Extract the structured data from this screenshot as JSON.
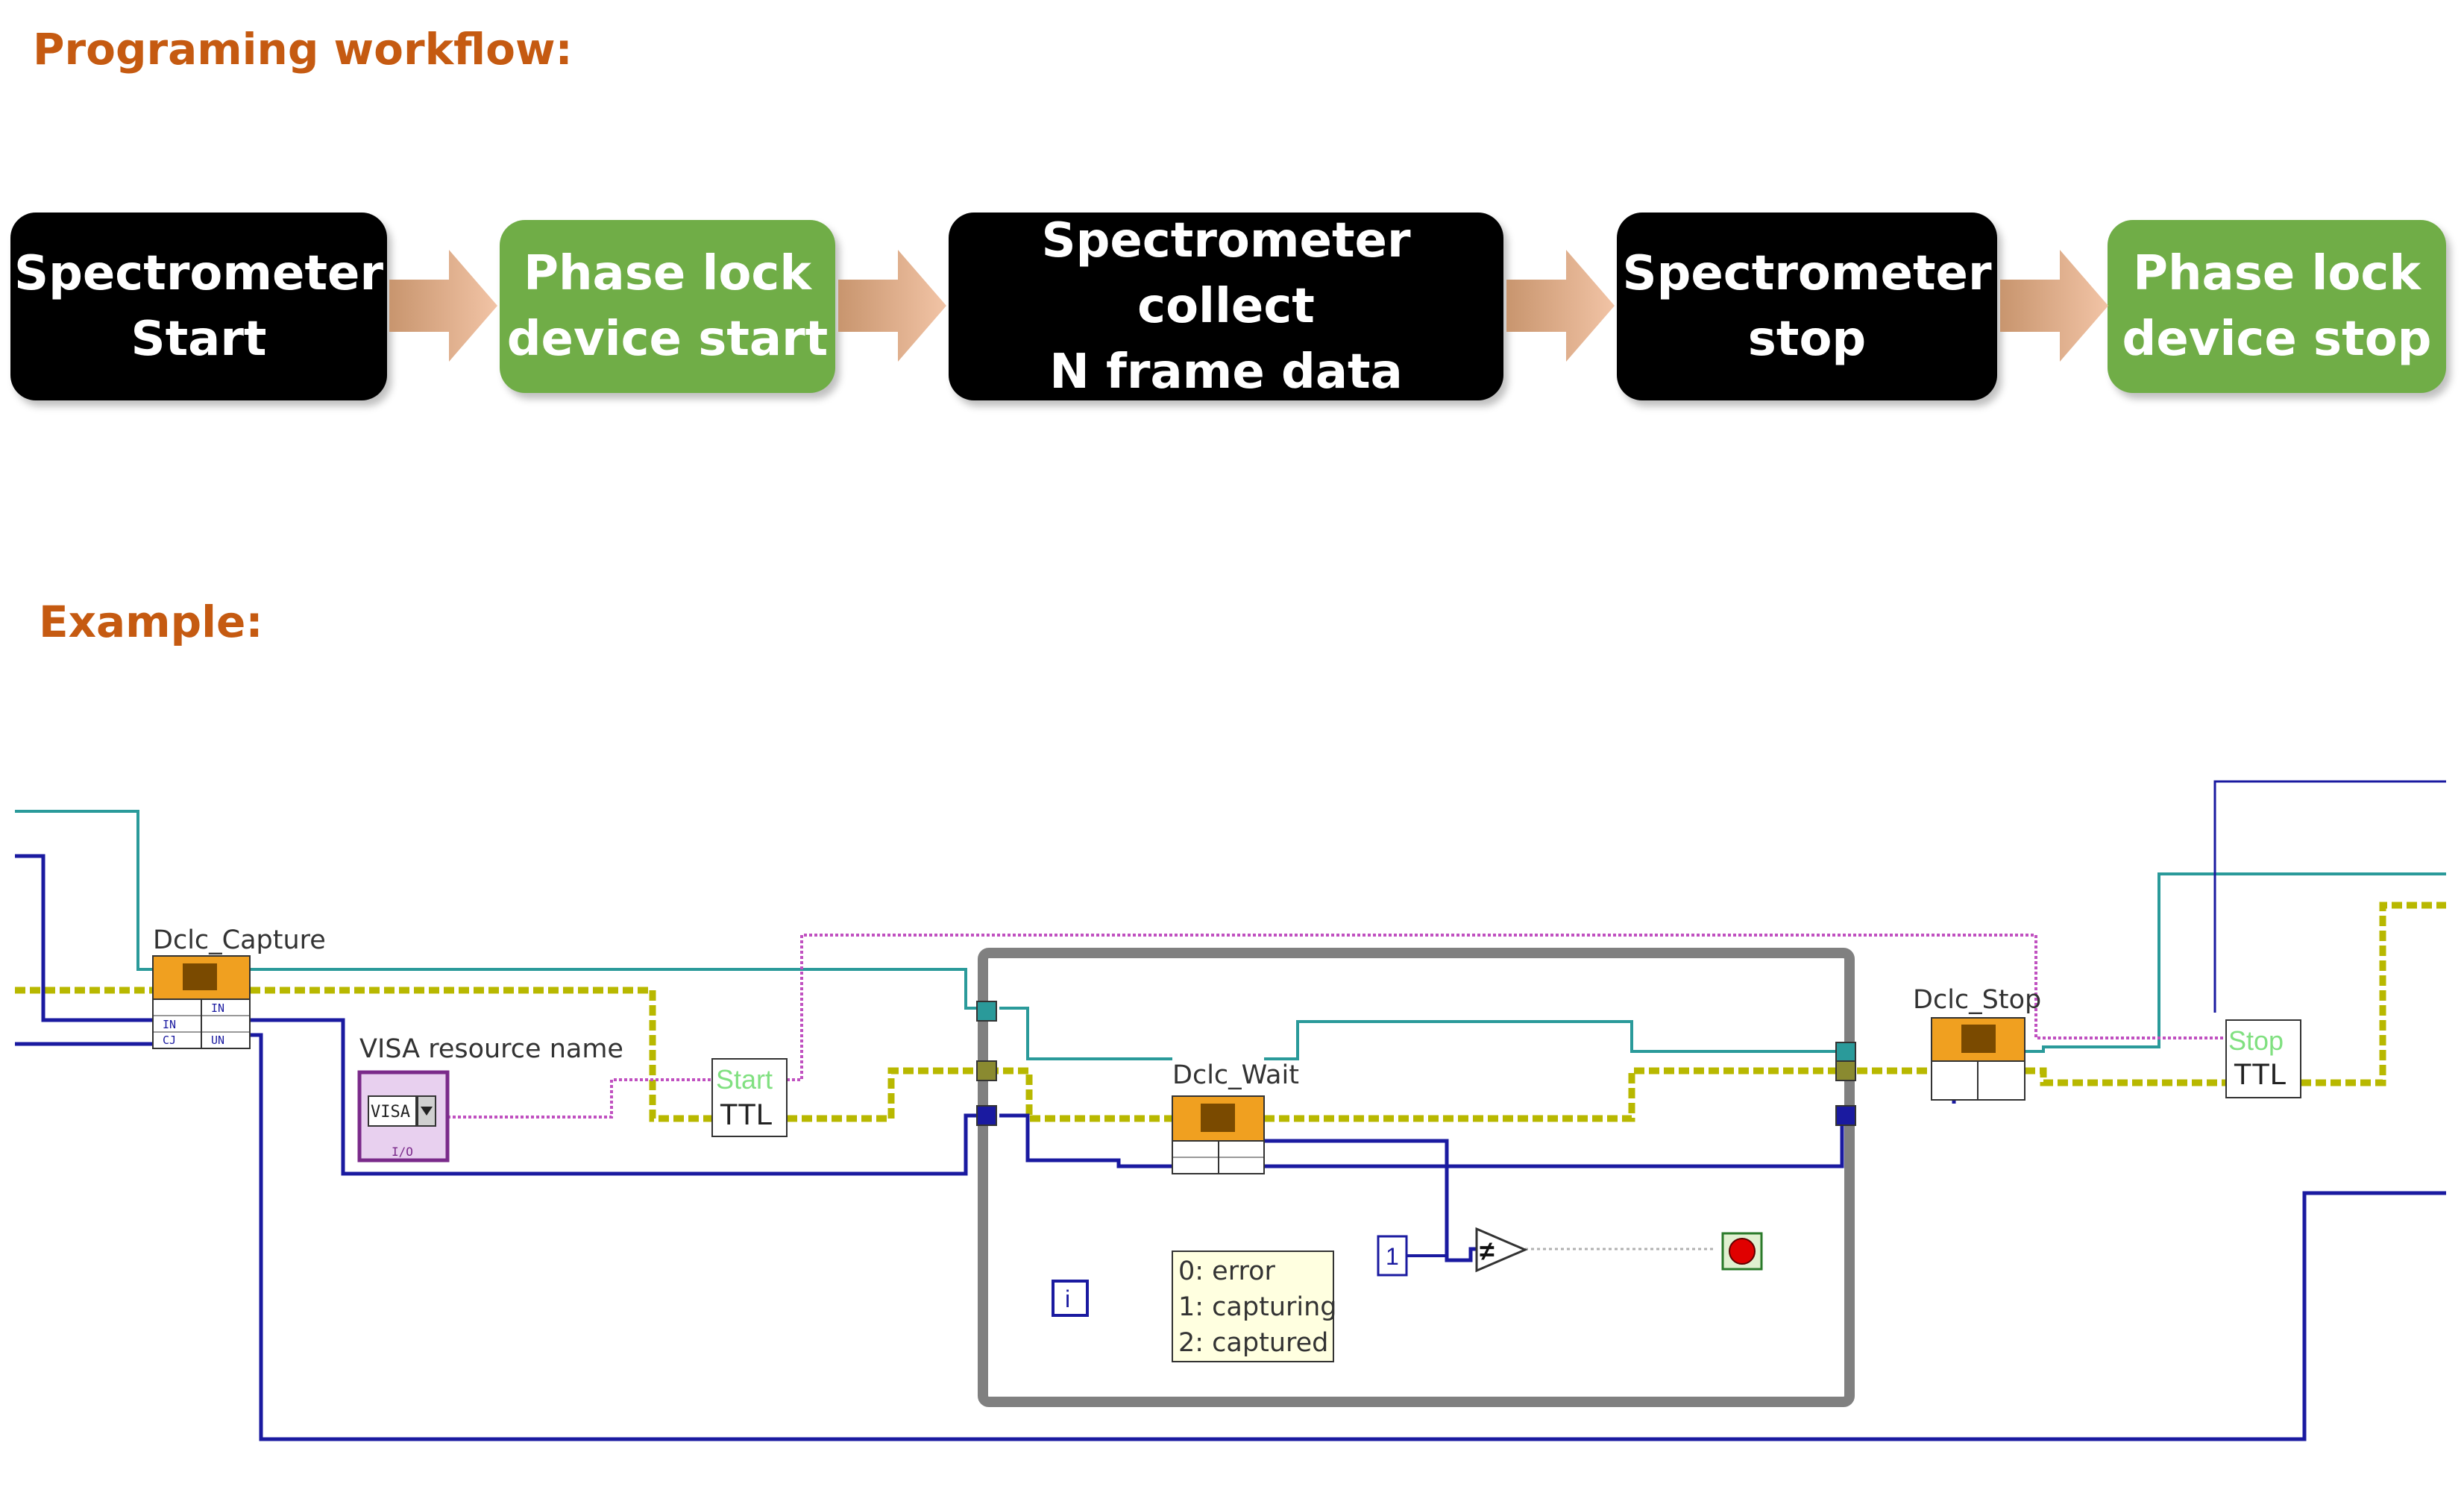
{
  "headings": {
    "workflow": "Programing workflow:",
    "example": "Example:"
  },
  "workflow_steps": [
    {
      "label": "Spectrometer\nStart",
      "color": "#000000"
    },
    {
      "label": "Phase lock\ndevice start",
      "color": "#70ad47"
    },
    {
      "label": "Spectrometer collect\nN frame data",
      "color": "#000000"
    },
    {
      "label": "Spectrometer\nstop",
      "color": "#000000"
    },
    {
      "label": "Phase lock\ndevice stop",
      "color": "#70ad47"
    }
  ],
  "arrow_color": "#d9a98a",
  "block_diagram": {
    "nodes": {
      "capture": "Dclc_Capture",
      "visa": "VISA resource name",
      "visa_control": "VISA",
      "visa_io": "I/O",
      "start": "Start",
      "ttl_start": "TTL",
      "wait": "Dclc_Wait",
      "stop_vi": "Dclc_Stop",
      "stop": "Stop",
      "ttl_stop": "TTL",
      "constant": "1",
      "comparison": "≠",
      "iteration": "i"
    },
    "terminal_labels": [
      "IN",
      "IN",
      "CJ",
      "UN"
    ],
    "status_legend": [
      "0: error",
      "1: capturing",
      "2: captured"
    ],
    "colors": {
      "error_wire": "#c8c800",
      "task_wire": "#2a9a9a",
      "ref_wire": "#1a1aa0",
      "string_wire": "#c050c0",
      "subvi": "#f0a020",
      "loop_border": "#808080",
      "stop_button": "#e00000"
    }
  }
}
